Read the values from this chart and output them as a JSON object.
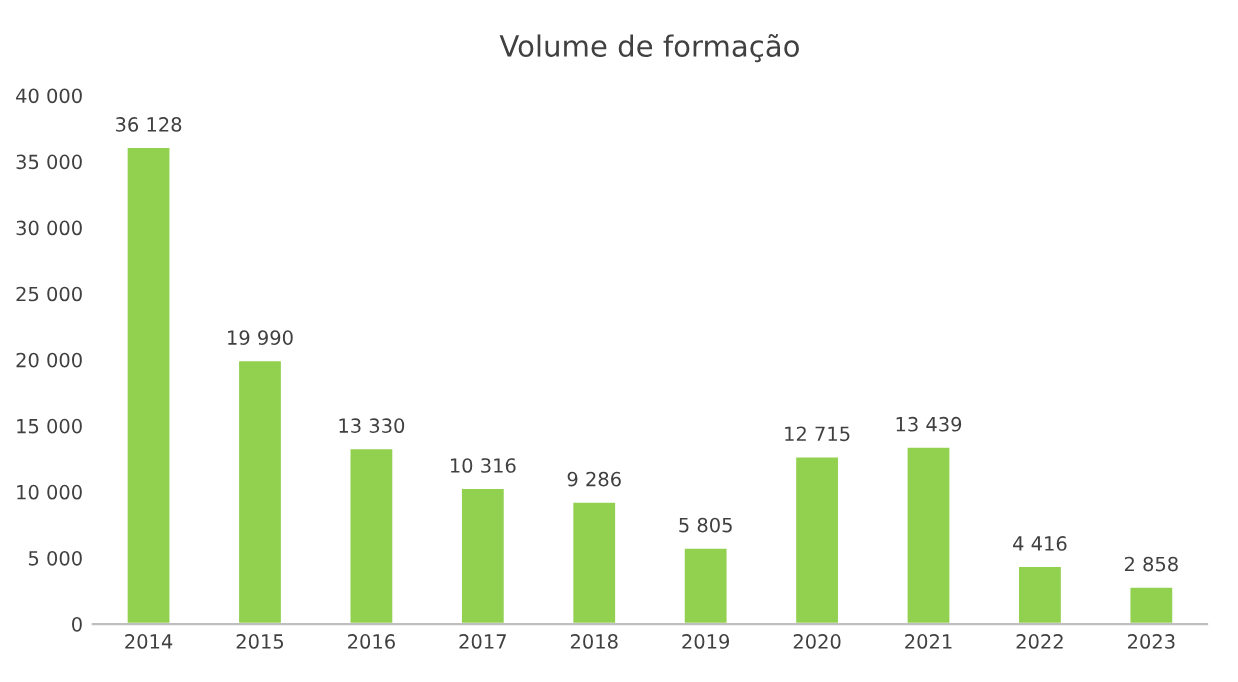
{
  "chart_data": {
    "type": "bar",
    "title": "Volume de formação",
    "categories": [
      "2014",
      "2015",
      "2016",
      "2017",
      "2018",
      "2019",
      "2020",
      "2021",
      "2022",
      "2023"
    ],
    "values": [
      36128,
      19990,
      13330,
      10316,
      9286,
      5805,
      12715,
      13439,
      4416,
      2858
    ],
    "value_labels": [
      "36 128",
      "19 990",
      "13 330",
      "10 316",
      "9 286",
      "5 805",
      "12 715",
      "13 439",
      "4 416",
      "2 858"
    ],
    "color": "#92d050",
    "ylim": [
      0,
      40000
    ],
    "yticks": [
      0,
      {
        "value": 5000,
        "label": "5 000"
      },
      {
        "value": 10000,
        "label": "10 000"
      },
      {
        "value": 15000,
        "label": "15 000"
      },
      {
        "value": 20000,
        "label": "20 000"
      },
      {
        "value": 25000,
        "label": "25 000"
      },
      {
        "value": 30000,
        "label": "30 000"
      },
      {
        "value": 35000,
        "label": "35 000"
      },
      {
        "value": 40000,
        "label": "40 000"
      }
    ],
    "grid": false
  }
}
